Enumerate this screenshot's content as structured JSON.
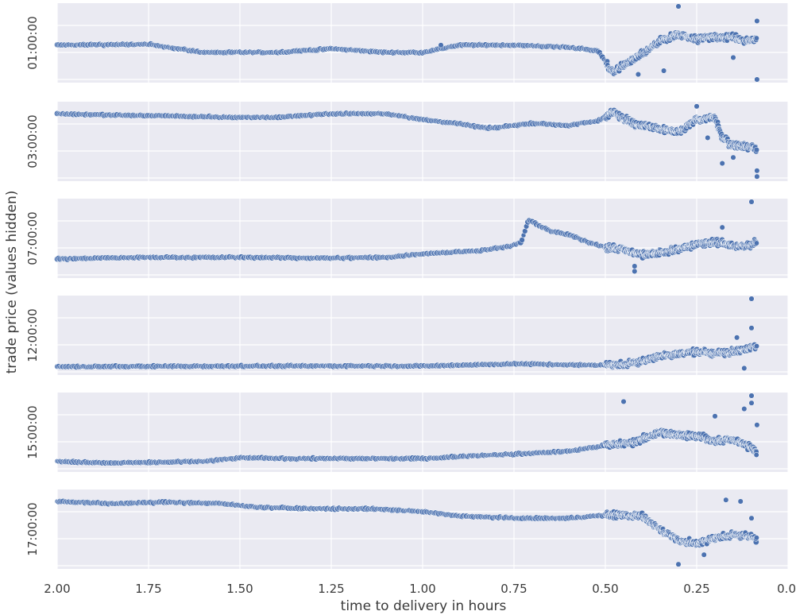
{
  "chart_data": {
    "type": "scatter",
    "xlabel": "time to delivery in hours",
    "ylabel": "trade price (values hidden)",
    "xlim": [
      2.0,
      0.0
    ],
    "x_ticks": [
      "2.00",
      "1.75",
      "1.50",
      "1.25",
      "1.00",
      "0.75",
      "0.50",
      "0.25",
      "0.0"
    ],
    "y_ticks_hidden": true,
    "grid": true,
    "colors": {
      "background": "#eaeaf2",
      "grid": "#ffffff",
      "marker": "#4c72b0",
      "marker_edge": "#ffffff"
    },
    "panels": [
      {
        "label": "01:00:00",
        "ylim": [
          0,
          1
        ],
        "profile": [
          [
            2.0,
            0.47
          ],
          [
            1.75,
            0.48
          ],
          [
            1.6,
            0.37
          ],
          [
            1.4,
            0.37
          ],
          [
            1.25,
            0.42
          ],
          [
            1.1,
            0.37
          ],
          [
            1.0,
            0.37
          ],
          [
            0.9,
            0.47
          ],
          [
            0.75,
            0.47
          ],
          [
            0.6,
            0.44
          ],
          [
            0.52,
            0.39
          ],
          [
            0.48,
            0.1
          ],
          [
            0.42,
            0.28
          ],
          [
            0.35,
            0.52
          ],
          [
            0.3,
            0.62
          ],
          [
            0.25,
            0.55
          ],
          [
            0.2,
            0.58
          ],
          [
            0.15,
            0.58
          ],
          [
            0.12,
            0.52
          ],
          [
            0.1,
            0.55
          ],
          [
            0.085,
            0.55
          ]
        ],
        "outliers": [
          [
            0.3,
            1.0
          ],
          [
            0.085,
            0.8
          ],
          [
            0.085,
            0.0
          ],
          [
            0.41,
            0.07
          ],
          [
            0.95,
            0.47
          ],
          [
            0.34,
            0.12
          ],
          [
            0.15,
            0.3
          ]
        ]
      },
      {
        "label": "03:00:00",
        "ylim": [
          0,
          1
        ],
        "profile": [
          [
            2.0,
            0.88
          ],
          [
            1.85,
            0.86
          ],
          [
            1.7,
            0.85
          ],
          [
            1.55,
            0.83
          ],
          [
            1.4,
            0.83
          ],
          [
            1.25,
            0.88
          ],
          [
            1.1,
            0.88
          ],
          [
            1.0,
            0.8
          ],
          [
            0.9,
            0.74
          ],
          [
            0.82,
            0.68
          ],
          [
            0.78,
            0.7
          ],
          [
            0.7,
            0.75
          ],
          [
            0.6,
            0.72
          ],
          [
            0.52,
            0.78
          ],
          [
            0.48,
            0.9
          ],
          [
            0.42,
            0.74
          ],
          [
            0.35,
            0.68
          ],
          [
            0.3,
            0.62
          ],
          [
            0.25,
            0.8
          ],
          [
            0.2,
            0.82
          ],
          [
            0.18,
            0.55
          ],
          [
            0.15,
            0.45
          ],
          [
            0.1,
            0.42
          ],
          [
            0.085,
            0.4
          ]
        ],
        "outliers": [
          [
            0.25,
            0.98
          ],
          [
            0.085,
            0.02
          ],
          [
            0.085,
            0.1
          ],
          [
            0.18,
            0.2
          ],
          [
            0.22,
            0.55
          ],
          [
            0.15,
            0.28
          ]
        ]
      },
      {
        "label": "07:00:00",
        "ylim": [
          0,
          1
        ],
        "profile": [
          [
            2.0,
            0.22
          ],
          [
            1.75,
            0.24
          ],
          [
            1.5,
            0.24
          ],
          [
            1.25,
            0.23
          ],
          [
            1.1,
            0.24
          ],
          [
            1.0,
            0.29
          ],
          [
            0.85,
            0.33
          ],
          [
            0.76,
            0.39
          ],
          [
            0.73,
            0.45
          ],
          [
            0.71,
            0.75
          ],
          [
            0.65,
            0.6
          ],
          [
            0.6,
            0.55
          ],
          [
            0.55,
            0.45
          ],
          [
            0.5,
            0.38
          ],
          [
            0.45,
            0.35
          ],
          [
            0.42,
            0.3
          ],
          [
            0.38,
            0.28
          ],
          [
            0.3,
            0.35
          ],
          [
            0.25,
            0.42
          ],
          [
            0.2,
            0.45
          ],
          [
            0.15,
            0.4
          ],
          [
            0.1,
            0.4
          ],
          [
            0.085,
            0.45
          ]
        ],
        "outliers": [
          [
            0.1,
            1.0
          ],
          [
            0.42,
            0.05
          ],
          [
            0.42,
            0.12
          ],
          [
            0.18,
            0.65
          ]
        ]
      },
      {
        "label": "12:00:00",
        "ylim": [
          0,
          1
        ],
        "profile": [
          [
            2.0,
            0.07
          ],
          [
            1.5,
            0.08
          ],
          [
            1.0,
            0.08
          ],
          [
            0.75,
            0.11
          ],
          [
            0.55,
            0.09
          ],
          [
            0.45,
            0.1
          ],
          [
            0.4,
            0.14
          ],
          [
            0.35,
            0.22
          ],
          [
            0.3,
            0.25
          ],
          [
            0.25,
            0.28
          ],
          [
            0.2,
            0.25
          ],
          [
            0.15,
            0.28
          ],
          [
            0.1,
            0.33
          ],
          [
            0.085,
            0.35
          ]
        ],
        "outliers": [
          [
            0.1,
            1.0
          ],
          [
            0.1,
            0.6
          ],
          [
            0.12,
            0.05
          ],
          [
            0.14,
            0.47
          ]
        ]
      },
      {
        "label": "15:00:00",
        "ylim": [
          0,
          1
        ],
        "profile": [
          [
            2.0,
            0.1
          ],
          [
            1.85,
            0.08
          ],
          [
            1.6,
            0.1
          ],
          [
            1.5,
            0.15
          ],
          [
            1.35,
            0.14
          ],
          [
            1.25,
            0.14
          ],
          [
            1.0,
            0.14
          ],
          [
            0.85,
            0.18
          ],
          [
            0.75,
            0.2
          ],
          [
            0.6,
            0.24
          ],
          [
            0.5,
            0.32
          ],
          [
            0.42,
            0.36
          ],
          [
            0.35,
            0.5
          ],
          [
            0.3,
            0.46
          ],
          [
            0.25,
            0.45
          ],
          [
            0.2,
            0.38
          ],
          [
            0.15,
            0.4
          ],
          [
            0.1,
            0.3
          ],
          [
            0.085,
            0.2
          ]
        ],
        "outliers": [
          [
            0.1,
            1.0
          ],
          [
            0.1,
            0.9
          ],
          [
            0.45,
            0.92
          ],
          [
            0.12,
            0.82
          ],
          [
            0.2,
            0.72
          ],
          [
            0.085,
            0.6
          ]
        ]
      },
      {
        "label": "17:00:00",
        "ylim": [
          0,
          1
        ],
        "profile": [
          [
            2.0,
            0.88
          ],
          [
            1.85,
            0.85
          ],
          [
            1.7,
            0.87
          ],
          [
            1.55,
            0.85
          ],
          [
            1.45,
            0.8
          ],
          [
            1.3,
            0.78
          ],
          [
            1.15,
            0.78
          ],
          [
            1.0,
            0.74
          ],
          [
            0.9,
            0.68
          ],
          [
            0.75,
            0.65
          ],
          [
            0.6,
            0.65
          ],
          [
            0.48,
            0.7
          ],
          [
            0.4,
            0.68
          ],
          [
            0.35,
            0.5
          ],
          [
            0.3,
            0.35
          ],
          [
            0.25,
            0.3
          ],
          [
            0.2,
            0.38
          ],
          [
            0.15,
            0.42
          ],
          [
            0.1,
            0.4
          ],
          [
            0.085,
            0.35
          ]
        ],
        "outliers": [
          [
            0.3,
            0.02
          ],
          [
            0.17,
            0.9
          ],
          [
            0.13,
            0.88
          ],
          [
            0.1,
            0.65
          ],
          [
            0.23,
            0.15
          ]
        ]
      }
    ]
  }
}
